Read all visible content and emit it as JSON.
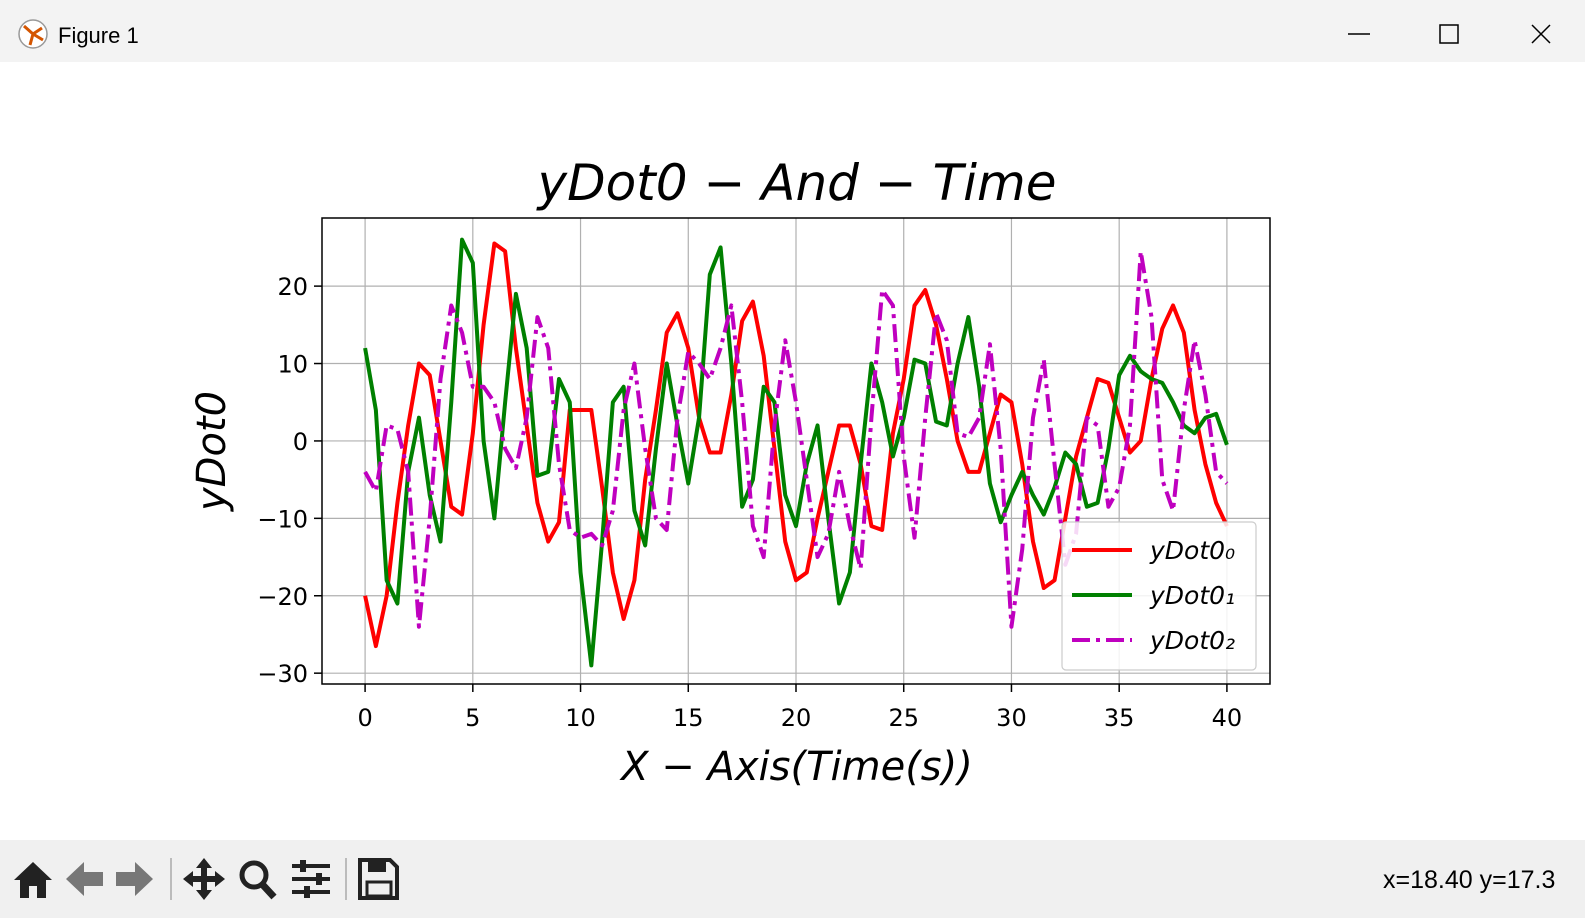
{
  "window": {
    "title": "Figure 1",
    "status": "x=18.40 y=17.3"
  },
  "chart_data": {
    "type": "line",
    "title": "yDot0 − And − Time",
    "xlabel": "X − Axis(Time(s))",
    "ylabel": "yDot0",
    "x": [
      0,
      0.5,
      1,
      1.5,
      2,
      2.5,
      3,
      3.5,
      4,
      4.5,
      5,
      5.5,
      6,
      6.5,
      7,
      7.5,
      8,
      8.5,
      9,
      9.5,
      10,
      10.5,
      11,
      11.5,
      12,
      12.5,
      13,
      13.5,
      14,
      14.5,
      15,
      15.5,
      16,
      16.5,
      17,
      17.5,
      18,
      18.5,
      19,
      19.5,
      20,
      20.5,
      21,
      21.5,
      22,
      22.5,
      23,
      23.5,
      24,
      24.5,
      25,
      25.5,
      26,
      26.5,
      27,
      27.5,
      28,
      28.5,
      29,
      29.5,
      30,
      30.5,
      31,
      31.5,
      32,
      32.5,
      33,
      33.5,
      34,
      34.5,
      35,
      35.5,
      36,
      36.5,
      37,
      37.5,
      38,
      38.5,
      39,
      39.5,
      40
    ],
    "series": [
      {
        "name": "yDot0₀",
        "color": "#ff0000",
        "linestyle": "solid",
        "values": [
          -20,
          -26.5,
          -20,
          -8,
          2,
          10,
          8.5,
          0,
          -8.5,
          -9.5,
          1,
          15,
          25.5,
          24.5,
          12,
          2,
          -8,
          -13,
          -10.5,
          4,
          4,
          4,
          -6,
          -17,
          -23,
          -18,
          -5,
          4,
          14,
          16.5,
          12,
          3,
          -1.5,
          -1.5,
          6,
          15.5,
          18,
          11,
          -1,
          -13,
          -18,
          -17,
          -10,
          -4,
          2,
          2,
          -3,
          -11,
          -11.5,
          1,
          8,
          17.5,
          19.5,
          15,
          8,
          0,
          -4,
          -4,
          1,
          6,
          5,
          -3,
          -13,
          -19,
          -18,
          -10,
          -2,
          3,
          8,
          7.5,
          3,
          -1.5,
          0,
          8,
          14.5,
          17.5,
          14,
          4,
          -3,
          -8,
          -11
        ]
      },
      {
        "name": "yDot0₁",
        "color": "#008000",
        "linestyle": "solid",
        "values": [
          12,
          4,
          -18,
          -21,
          -4,
          3,
          -7,
          -13,
          5,
          26,
          23,
          0,
          -10,
          5,
          19,
          12,
          -4.5,
          -4,
          8,
          5,
          -17,
          -29,
          -13,
          5,
          7,
          -9,
          -13.5,
          -1,
          10,
          2,
          -5.5,
          3,
          21.5,
          25,
          10,
          -8.5,
          -5,
          7,
          5,
          -7,
          -11,
          -3,
          2,
          -10,
          -21,
          -17,
          -3,
          10,
          5,
          -2,
          3,
          10.5,
          10,
          2.5,
          2,
          10,
          16,
          7,
          -5.5,
          -10.5,
          -7,
          -4,
          -7,
          -9.5,
          -6,
          -1.5,
          -3,
          -8.5,
          -8,
          -1,
          8.5,
          11,
          9,
          8,
          7.5,
          5,
          2,
          1,
          3,
          3.5,
          -0.5
        ]
      },
      {
        "name": "yDot0₂",
        "color": "#bf00bf",
        "linestyle": "dashdot",
        "values": [
          -4,
          -6.5,
          2,
          1.5,
          -4,
          -24,
          -10,
          8,
          17.5,
          14,
          7,
          7,
          5,
          -1,
          -3.5,
          3,
          16,
          12,
          -3,
          -11.5,
          -12.5,
          -12,
          -13.5,
          -9,
          4,
          10,
          -1,
          -10,
          -11.5,
          3,
          11.5,
          10,
          8,
          12,
          17.5,
          5,
          -11,
          -15,
          2,
          13,
          5,
          -5,
          -15,
          -12,
          -4,
          -11,
          -16.5,
          3,
          19.5,
          17.5,
          -2,
          -12.5,
          3,
          16.5,
          13,
          1,
          0.5,
          3,
          12.5,
          -1,
          -24,
          -14,
          3,
          10.5,
          -3,
          -16,
          -12,
          3,
          2,
          -8.5,
          -6,
          2,
          24.5,
          16,
          -5,
          -9,
          4,
          13,
          6,
          -4,
          -5.5
        ]
      }
    ],
    "xlim": [
      -2,
      42
    ],
    "ylim": [
      -31.4,
      28.8
    ],
    "xticks": [
      0,
      5,
      10,
      15,
      20,
      25,
      30,
      35,
      40
    ],
    "yticks": [
      {
        "value": -30,
        "label": "−30"
      },
      {
        "value": -20,
        "label": "−20"
      },
      {
        "value": -10,
        "label": "−10"
      },
      0,
      10,
      20
    ],
    "grid": true,
    "legend": "lower right"
  }
}
